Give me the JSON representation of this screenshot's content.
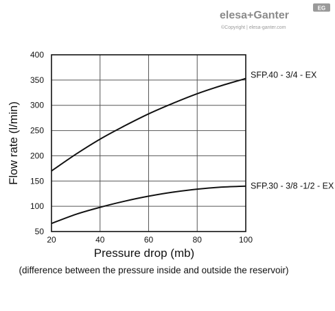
{
  "brand": {
    "name": "elesa+Ganter",
    "copyright": "©Copyright | elesa-ganter.com",
    "badge": "EG"
  },
  "chart_data": {
    "type": "line",
    "xlabel": "Pressure drop (mb)",
    "ylabel": "Flow rate (l/min)",
    "note": "(difference between the pressure inside and outside the reservoir)",
    "xlim": [
      20,
      100
    ],
    "ylim": [
      50,
      400
    ],
    "xticks": [
      20,
      40,
      60,
      80,
      100
    ],
    "yticks": [
      50,
      100,
      150,
      200,
      250,
      300,
      350,
      400
    ],
    "grid": true,
    "series": [
      {
        "name": "SFP.40 - 3/4 - EX",
        "x": [
          20,
          30,
          40,
          50,
          60,
          70,
          80,
          90,
          100
        ],
        "y": [
          170,
          203,
          233,
          259,
          283,
          304,
          323,
          339,
          353
        ]
      },
      {
        "name": "SFP.30 - 3/8 -1/2 - EX",
        "x": [
          20,
          30,
          40,
          50,
          60,
          70,
          80,
          90,
          100
        ],
        "y": [
          66,
          84,
          98,
          110,
          120,
          128,
          134,
          138,
          140
        ]
      }
    ]
  }
}
